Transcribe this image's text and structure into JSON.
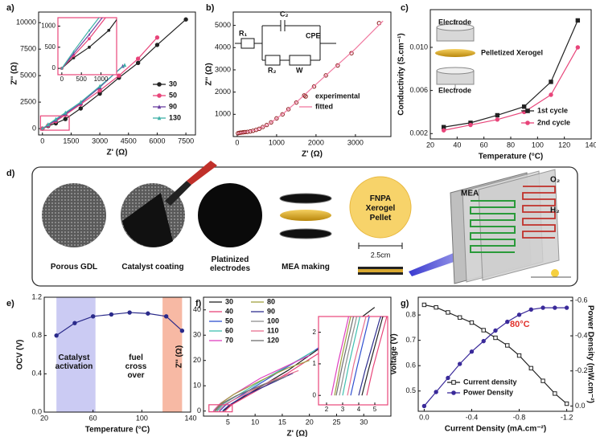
{
  "chart_data": [
    {
      "type": "line",
      "label": "a)",
      "xlabel": "Z' (Ω)",
      "ylabel": "Z'' (Ω)",
      "xlim": [
        -200,
        8000
      ],
      "xticks": [
        0,
        1500,
        3000,
        4500,
        6000,
        7500
      ],
      "ylim": [
        -600,
        11000
      ],
      "yticks": [
        0,
        2500,
        5000,
        7500,
        10000
      ],
      "series": [
        {
          "name": "30",
          "color": "#222222",
          "marker": "circle",
          "x": [
            0,
            300,
            700,
            1200,
            2000,
            3000,
            4000,
            5000,
            6000,
            7500
          ],
          "values": [
            0,
            250,
            500,
            900,
            1900,
            3300,
            4800,
            6200,
            7900,
            10300
          ]
        },
        {
          "name": "50",
          "color": "#e8457a",
          "marker": "circle",
          "x": [
            0,
            300,
            700,
            1200,
            2000,
            3000,
            4000,
            5000,
            6000
          ],
          "values": [
            0,
            300,
            700,
            1300,
            2300,
            3600,
            5000,
            6600,
            8600
          ]
        },
        {
          "name": "90",
          "color": "#6a3fa0",
          "marker": "triangle",
          "x": [
            0,
            300,
            700,
            1200,
            2000,
            3000,
            4200
          ],
          "values": [
            0,
            350,
            800,
            1400,
            2400,
            3900,
            5900
          ]
        },
        {
          "name": "130",
          "color": "#3fb0a8",
          "marker": "triangle",
          "x": [
            0,
            300,
            700,
            1200,
            2000,
            3000,
            4300
          ],
          "values": [
            0,
            400,
            900,
            1500,
            2500,
            4000,
            6000
          ]
        }
      ],
      "inset": {
        "xlim": [
          -100,
          1400
        ],
        "ylim": [
          -150,
          1200
        ],
        "xticks": [
          0,
          500,
          1000
        ],
        "yticks": [
          0,
          500,
          1000
        ],
        "color": "#e8457a"
      }
    },
    {
      "type": "line",
      "label": "b)",
      "xlabel": "Z' (Ω)",
      "ylabel": "Z'' (Ω)",
      "xlim": [
        -100,
        3900
      ],
      "xticks": [
        0,
        1000,
        2000,
        3000
      ],
      "ylim": [
        0,
        5600
      ],
      "yticks": [
        1000,
        2000,
        3000,
        4000,
        5000
      ],
      "series": [
        {
          "name": "experimental",
          "color": "#8b1a1a",
          "marker": "open-circle",
          "line": false,
          "x": [
            20,
            60,
            100,
            150,
            200,
            260,
            330,
            400,
            480,
            560,
            650,
            750,
            860,
            1000,
            1150,
            1300,
            1500,
            1700,
            1950,
            2250,
            2550,
            2900,
            3600
          ],
          "values": [
            150,
            170,
            180,
            190,
            200,
            210,
            230,
            260,
            300,
            350,
            430,
            520,
            640,
            820,
            1000,
            1230,
            1530,
            1850,
            2250,
            2750,
            3200,
            3750,
            5100
          ]
        },
        {
          "name": "fitted",
          "color": "#f07aa0",
          "x": [
            0,
            200,
            500,
            800,
            1200,
            1600,
            2000,
            2500,
            3000,
            3700
          ],
          "values": [
            130,
            200,
            300,
            560,
            1080,
            1700,
            2350,
            3150,
            3950,
            5200
          ]
        }
      ],
      "annotations": [
        "R₁",
        "C₂",
        "CPE",
        "R₂",
        "W"
      ]
    },
    {
      "type": "line",
      "label": "c)",
      "xlabel": "Temperature (°C)",
      "ylabel": "Conductivity (S.cm⁻¹)",
      "xlim": [
        20,
        140
      ],
      "xticks": [
        20,
        40,
        60,
        80,
        100,
        120,
        140
      ],
      "ylim": [
        0.0015,
        0.0135
      ],
      "yticks": [
        0.002,
        0.006,
        {
          "value": 0.01,
          "label": "0.010"
        }
      ],
      "series": [
        {
          "name": "1st cycle",
          "color": "#222222",
          "marker": "square",
          "x": [
            30,
            50,
            70,
            90,
            110,
            130
          ],
          "values": [
            0.0026,
            0.003,
            0.0037,
            0.0045,
            0.0068,
            0.0125
          ]
        },
        {
          "name": "2nd cycle",
          "color": "#e8457a",
          "marker": "circle",
          "x": [
            30,
            50,
            70,
            90,
            110,
            130
          ],
          "values": [
            0.0023,
            0.0028,
            0.0033,
            0.004,
            0.0056,
            0.01
          ]
        }
      ],
      "annotations": [
        "Electrode",
        "Pelletized Xerogel",
        "Electrode"
      ]
    },
    {
      "type": "line",
      "label": "e)",
      "xlabel": "Temperature (°C)",
      "ylabel": "OCV (V)",
      "xlim": [
        20,
        140
      ],
      "xticks": [
        20,
        60,
        100,
        140
      ],
      "ylim": [
        0,
        1.2
      ],
      "yticks": [
        {
          "value": 0,
          "label": "0.0"
        },
        0.4,
        0.8,
        1.2
      ],
      "bands": [
        {
          "x": [
            30,
            62
          ],
          "color": "#cbcbf3"
        },
        {
          "x": [
            117,
            133
          ],
          "color": "#f7b9a4"
        }
      ],
      "series": [
        {
          "name": "OCV",
          "color": "#2a2a8a",
          "marker": "circle",
          "x": [
            30,
            45,
            60,
            75,
            90,
            105,
            120,
            133
          ],
          "values": [
            0.8,
            0.93,
            1.0,
            1.02,
            1.04,
            1.03,
            1.0,
            0.85
          ]
        }
      ],
      "legend": false,
      "annotations": [
        "Catalyst activation",
        "fuel cross over"
      ]
    },
    {
      "type": "line",
      "label": "f)",
      "xlabel": "Z' (Ω)",
      "ylabel": "Z'' (Ω)",
      "xlim": [
        0.5,
        35
      ],
      "xticks": [
        5,
        10,
        15,
        20,
        25,
        30
      ],
      "ylim": [
        -2,
        45
      ],
      "yticks": [
        0,
        10,
        20,
        30,
        40
      ],
      "series": [
        {
          "name": "30",
          "color": "#222222",
          "x": [
            4.2,
            4.6,
            5.5,
            9,
            16,
            24,
            32
          ],
          "values": [
            0,
            0.8,
            2.5,
            7,
            16,
            28,
            41
          ]
        },
        {
          "name": "40",
          "color": "#e8457a",
          "x": [
            4.5,
            4.9,
            5.8,
            9,
            16,
            24,
            31
          ],
          "values": [
            0,
            0.9,
            2.6,
            6.5,
            15,
            26,
            38
          ]
        },
        {
          "name": "50",
          "color": "#3050d0",
          "x": [
            3.5,
            3.9,
            4.8,
            8,
            14,
            21,
            27
          ],
          "values": [
            0,
            0.9,
            2.8,
            7,
            15,
            24,
            33
          ]
        },
        {
          "name": "60",
          "color": "#40c0b0",
          "x": [
            3.0,
            3.4,
            4.3,
            7,
            12,
            17,
            21
          ],
          "values": [
            0,
            1,
            3,
            6.5,
            13,
            19,
            24
          ]
        },
        {
          "name": "70",
          "color": "#e040c0",
          "x": [
            2.3,
            2.7,
            3.6,
            6,
            11,
            16,
            20
          ],
          "values": [
            0,
            1,
            3,
            6.5,
            13,
            18,
            22
          ]
        },
        {
          "name": "80",
          "color": "#a0a040",
          "x": [
            2.5,
            2.9,
            3.8,
            6,
            11,
            16,
            20
          ],
          "values": [
            0,
            1.1,
            3.2,
            6.5,
            12,
            17,
            20
          ]
        },
        {
          "name": "90",
          "color": "#303090",
          "x": [
            4.0,
            4.4,
            5.3,
            8,
            13,
            17
          ],
          "values": [
            0,
            0.8,
            2.4,
            6,
            11,
            15
          ]
        },
        {
          "name": "100",
          "color": "#909090",
          "x": [
            2.8,
            3.2,
            4.1,
            7,
            12,
            16
          ],
          "values": [
            0,
            1,
            3,
            6.5,
            11,
            14
          ]
        },
        {
          "name": "110",
          "color": "#e87090",
          "x": [
            3.3,
            3.7,
            4.6,
            7.5,
            13,
            18
          ],
          "values": [
            0,
            1,
            2.8,
            6,
            12,
            16
          ]
        },
        {
          "name": "120",
          "color": "#707070",
          "x": [
            2.6,
            3.0,
            3.9,
            6.5,
            11,
            15
          ],
          "values": [
            0,
            1,
            3,
            6,
            10,
            13
          ]
        }
      ],
      "inset": {
        "xlim": [
          1.5,
          5.8
        ],
        "ylim": [
          -0.3,
          2.5
        ],
        "xticks": [
          2,
          3,
          4,
          5
        ],
        "yticks": [
          0,
          1,
          2
        ],
        "color": "#e8457a"
      }
    },
    {
      "type": "line",
      "label": "g)",
      "xlabel": "Current Density (mA.cm⁻²)",
      "ylabel": "Voltage (V)",
      "y2label": "Power Density (mW.cm⁻²)",
      "xlim": [
        0.05,
        -1.25
      ],
      "xticks": [
        {
          "value": 0,
          "label": "0.0"
        },
        -0.4,
        -0.8,
        -1.2
      ],
      "ylim": [
        0.42,
        0.87
      ],
      "yticks": [
        0.5,
        0.6,
        0.7,
        0.8
      ],
      "y2lim": [
        0.03,
        -0.62
      ],
      "y2ticks": [
        {
          "value": 0,
          "label": "0.0"
        },
        -0.2,
        -0.4,
        -0.6
      ],
      "series": [
        {
          "name": "Current density",
          "color": "#222222",
          "marker": "open-square",
          "x": [
            0,
            -0.1,
            -0.2,
            -0.3,
            -0.4,
            -0.5,
            -0.6,
            -0.7,
            -0.8,
            -0.9,
            -1.0,
            -1.1,
            -1.2
          ],
          "values": [
            0.84,
            0.83,
            0.81,
            0.79,
            0.77,
            0.74,
            0.71,
            0.68,
            0.64,
            0.59,
            0.54,
            0.49,
            0.45
          ]
        },
        {
          "name": "Power Density",
          "color": "#3a2a9a",
          "marker": "circle",
          "axis": "y2",
          "x": [
            0,
            -0.1,
            -0.2,
            -0.3,
            -0.4,
            -0.5,
            -0.6,
            -0.7,
            -0.8,
            -0.9,
            -1.0,
            -1.1,
            -1.2
          ],
          "values": [
            0,
            -0.08,
            -0.16,
            -0.24,
            -0.31,
            -0.37,
            -0.43,
            -0.48,
            -0.52,
            -0.55,
            -0.56,
            -0.56,
            -0.56
          ]
        }
      ],
      "annotations": [
        "80°C"
      ]
    }
  ],
  "diagram": {
    "label": "d)",
    "steps": [
      "Porous GDL",
      "Catalyst coating",
      "Platinized electrodes",
      "MEA making"
    ],
    "pellet": "FNPA Xerogel Pellet",
    "scale": "2.5cm",
    "mea": "MEA",
    "o2": "O₂",
    "h2": "H₂"
  }
}
